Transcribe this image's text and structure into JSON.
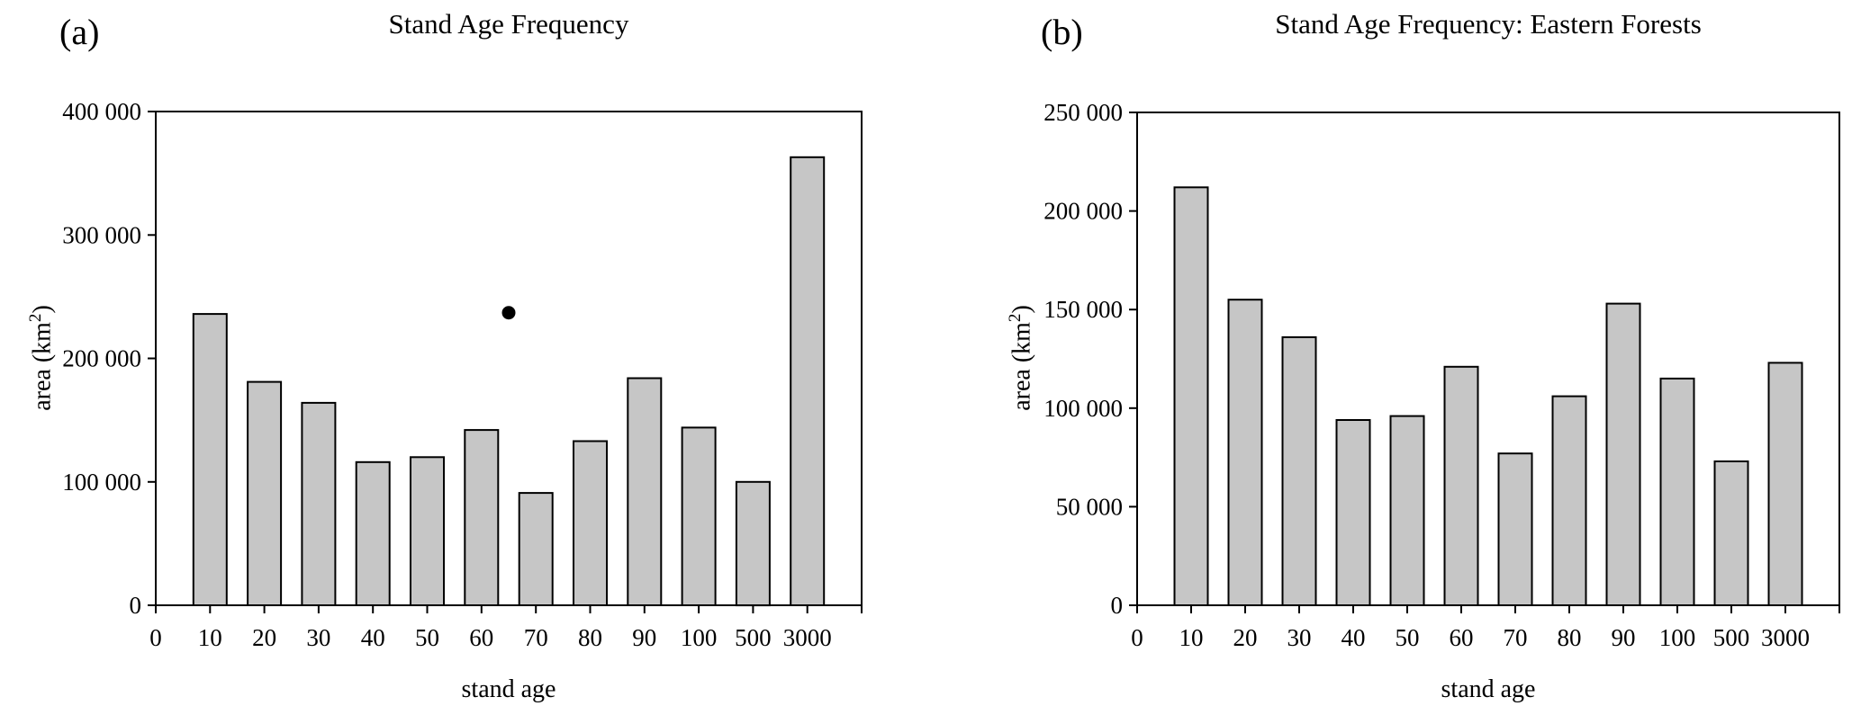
{
  "figure": {
    "background": "#ffffff",
    "text_color": "#000000",
    "bar_fill": "#c6c6c6",
    "bar_stroke": "#000000"
  },
  "panels": {
    "a": {
      "label": "(a)",
      "title": "Stand Age Frequency",
      "xlabel": "stand age",
      "ylabel_prefix": "area (km",
      "ylabel_sup": "2",
      "ylabel_suffix": ")"
    },
    "b": {
      "label": "(b)",
      "title": "Stand Age Frequency: Eastern Forests",
      "xlabel": "stand age",
      "ylabel_prefix": "area (km",
      "ylabel_sup": "2",
      "ylabel_suffix": ")"
    }
  },
  "chart_data": [
    {
      "type": "bar",
      "panel": "(a)",
      "title": "Stand Age Frequency",
      "xlabel": "stand age",
      "ylabel": "area (km²)",
      "categories": [
        "0",
        "10",
        "20",
        "30",
        "40",
        "50",
        "60",
        "70",
        "80",
        "90",
        "100",
        "500",
        "3000"
      ],
      "values": [
        null,
        236000,
        181000,
        164000,
        116000,
        120000,
        142000,
        91000,
        133000,
        184000,
        144000,
        100000,
        363000
      ],
      "point": {
        "x": 65,
        "slot_position": 6.5,
        "value": 237000,
        "shape": "circle",
        "color": "#000000"
      },
      "ylim": [
        0,
        400000
      ],
      "ytick_step": 100000,
      "ytick_labels": [
        "0",
        "100 000",
        "200 000",
        "300 000",
        "400 000"
      ],
      "grid": false,
      "legend": false,
      "bar_fill": "#c6c6c6",
      "bar_stroke": "#000000"
    },
    {
      "type": "bar",
      "panel": "(b)",
      "title": "Stand Age Frequency: Eastern Forests",
      "xlabel": "stand age",
      "ylabel": "area (km²)",
      "categories": [
        "0",
        "10",
        "20",
        "30",
        "40",
        "50",
        "60",
        "70",
        "80",
        "90",
        "100",
        "500",
        "3000"
      ],
      "values": [
        null,
        212000,
        155000,
        136000,
        94000,
        96000,
        121000,
        77000,
        106000,
        153000,
        115000,
        73000,
        123000
      ],
      "ylim": [
        0,
        250000
      ],
      "ytick_step": 50000,
      "ytick_labels": [
        "0",
        "50 000",
        "100 000",
        "150 000",
        "200 000",
        "250 000"
      ],
      "grid": false,
      "legend": false,
      "bar_fill": "#c6c6c6",
      "bar_stroke": "#000000"
    }
  ]
}
